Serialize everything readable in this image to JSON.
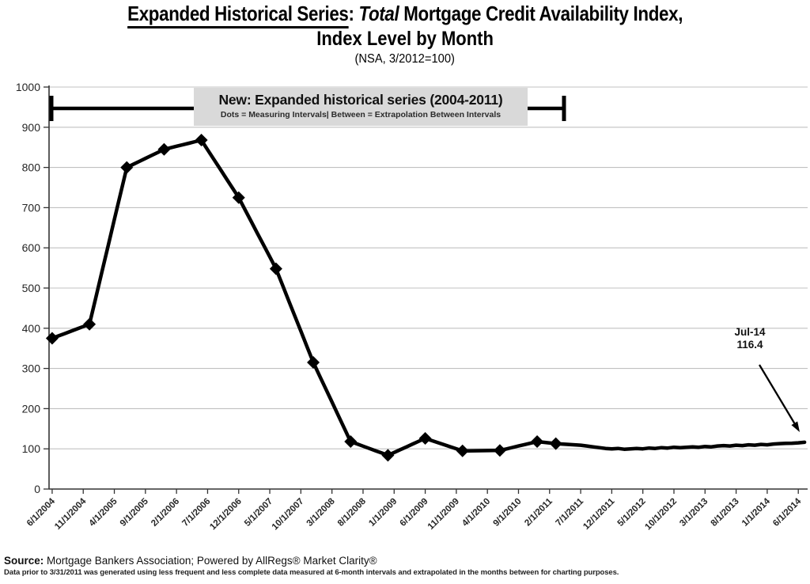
{
  "title": {
    "underlined": "Expanded Historical Series",
    "separator": ": ",
    "italic": "Total",
    "rest": " Mortgage Credit Availability Index,",
    "line2": "Index Level by Month",
    "line3": "(NSA, 3/2012=100)"
  },
  "callout": {
    "heading": "New: Expanded historical series (2004-2011)",
    "subtext": "Dots = Measuring Intervals| Between = Extrapolation Between Intervals"
  },
  "endpoint_label": {
    "line1": "Jul-14",
    "line2": "116.4"
  },
  "footer": {
    "source_label": "Source:",
    "source_text": " Mortgage Bankers Association; Powered by AllRegs® Market Clarity®",
    "footnote": "Data prior to 3/31/2011 was generated using less frequent and less complete data measured at 6-month intervals and extrapolated in the months between for charting purposes."
  },
  "chart_data": {
    "type": "line",
    "title": "Expanded Historical Series: Total Mortgage Credit Availability Index, Index Level by Month",
    "subtitle": "(NSA, 3/2012=100)",
    "x_start_month": "6/2004",
    "x_end_month": "7/2014",
    "months_total": 122,
    "ylim": [
      0,
      1000
    ],
    "y_tick_step": 100,
    "y_tick_values": [
      0,
      100,
      200,
      300,
      400,
      500,
      600,
      700,
      800,
      900,
      1000
    ],
    "x_tick_month_indexes": [
      0,
      5,
      10,
      15,
      20,
      25,
      30,
      35,
      40,
      45,
      50,
      55,
      60,
      65,
      70,
      75,
      80,
      85,
      90,
      95,
      100,
      105,
      110,
      115,
      120
    ],
    "x_tick_labels": [
      "6/1/2004",
      "11/1/2004",
      "4/1/2005",
      "9/1/2005",
      "2/1/2006",
      "7/1/2006",
      "12/1/2006",
      "5/1/2007",
      "10/1/2007",
      "3/1/2008",
      "8/1/2008",
      "1/1/2009",
      "6/1/2009",
      "11/1/2009",
      "4/1/2010",
      "9/1/2010",
      "2/1/2011",
      "7/1/2011",
      "12/1/2011",
      "5/1/2012",
      "10/1/2012",
      "3/1/2013",
      "8/1/2013",
      "1/1/2014",
      "6/1/2014"
    ],
    "grid": "horizontal",
    "legend": "none",
    "marker": "diamond",
    "measured_points": [
      {
        "date": "6/1/2004",
        "month_index": 0,
        "value": 375
      },
      {
        "date": "12/1/2004",
        "month_index": 6,
        "value": 410
      },
      {
        "date": "6/1/2005",
        "month_index": 12,
        "value": 800
      },
      {
        "date": "12/1/2005",
        "month_index": 18,
        "value": 845
      },
      {
        "date": "6/1/2006",
        "month_index": 24,
        "value": 868
      },
      {
        "date": "12/1/2006",
        "month_index": 30,
        "value": 725
      },
      {
        "date": "6/1/2007",
        "month_index": 36,
        "value": 548
      },
      {
        "date": "12/1/2007",
        "month_index": 42,
        "value": 315
      },
      {
        "date": "6/1/2008",
        "month_index": 48,
        "value": 118
      },
      {
        "date": "12/1/2008",
        "month_index": 54,
        "value": 84
      },
      {
        "date": "6/1/2009",
        "month_index": 60,
        "value": 126
      },
      {
        "date": "12/1/2009",
        "month_index": 66,
        "value": 95
      },
      {
        "date": "6/1/2010",
        "month_index": 72,
        "value": 96
      },
      {
        "date": "12/1/2010",
        "month_index": 78,
        "value": 118
      },
      {
        "date": "3/1/2011",
        "month_index": 81,
        "value": 113
      }
    ],
    "between_measured_points": "linear extrapolation between measuring intervals (monthly)",
    "monthly_values_after_3_2011": {
      "start_date": "4/1/2011",
      "start_month_index": 82,
      "values": [
        112,
        111,
        110,
        109,
        107,
        105,
        103,
        101,
        100,
        101,
        99,
        100,
        101,
        100,
        102,
        101,
        103,
        102,
        104,
        103,
        104,
        105,
        104,
        106,
        105,
        107,
        108,
        107,
        109,
        108,
        110,
        109,
        111,
        110,
        112,
        113,
        113.5,
        114,
        115,
        116.4
      ]
    },
    "end_annotation": {
      "label": "Jul-14",
      "value": 116.4,
      "date": "7/1/2014"
    },
    "colors": {
      "line": "#000000",
      "marker": "#000000",
      "gridline": "#c0c0c0",
      "axis": "#333333",
      "callout_bg": "#d9d9d9",
      "bracket": "#000000"
    }
  }
}
